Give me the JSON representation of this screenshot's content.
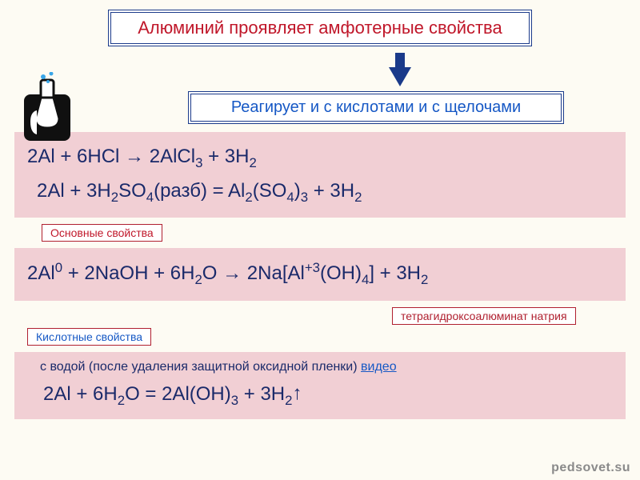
{
  "colors": {
    "title_border": "#1a3a8a",
    "title_text": "#c0172a",
    "subtitle_text": "#1658c5",
    "equation_bg": "#f1cfd4",
    "equation_text": "#1a2a6a",
    "label_border": "#b02030",
    "label_basic_text": "#c0172a",
    "label_acid_text": "#1658c5",
    "label_tetra_text": "#b02030",
    "note_text": "#1a2a6a",
    "link_text": "#1658c5",
    "arrow_fill": "#1a3a8a",
    "page_bg": "#fdfbf3",
    "watermark": "#8a8a8a"
  },
  "fonts": {
    "title_size": 22,
    "subtitle_size": 20,
    "equation_size": 24,
    "label_size": 14,
    "note_size": 16
  },
  "title": "Алюминий проявляет амфотерные свойства",
  "subtitle": "Реагирует и с кислотами и с щелочами",
  "block1": {
    "eq1_html": "2Al + 6HCl → 2AlCl<sub>3</sub> + 3H<sub>2</sub>",
    "eq2_html": "2Al + 3H<sub>2</sub>SO<sub>4</sub>(разб) = Al<sub>2</sub>(SO<sub>4</sub>)<sub>3</sub> + 3H<sub>2</sub>"
  },
  "label_basic": "Основные свойства",
  "block2": {
    "eq_html": "2Al<sup>0</sup> + 2NaOH + 6H<sub>2</sub>O → 2Na[Al<sup>+3</sup>(OH)<sub>4</sub>] + 3H<sub>2</sub>"
  },
  "label_tetra": "тетрагидроксоалюминат натрия",
  "label_acid": "Кислотные свойства",
  "block3": {
    "note_prefix": "с водой (после удаления защитной оксидной пленки) ",
    "note_link": "видео",
    "eq_html": "2Al + 6H<sub>2</sub>O = 2Al(OH)<sub>3</sub> + 3H<sub>2</sub><span class='gas-arrow'>↑</span>"
  },
  "watermark": "pedsovet.su",
  "icon": {
    "name": "flask-in-hand-icon",
    "hand_fill": "#101010",
    "flask_fill": "#ffffff",
    "flask_stroke": "#101010",
    "bubble_fill": "#3aa6e8"
  }
}
